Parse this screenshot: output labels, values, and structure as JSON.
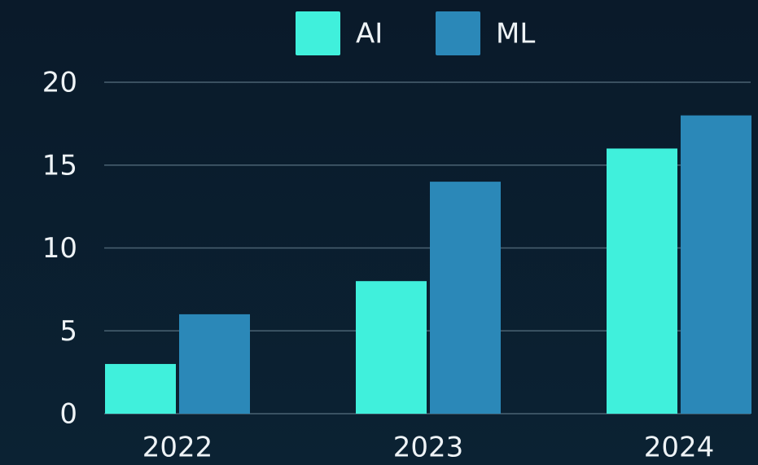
{
  "chart_data": {
    "type": "bar",
    "categories": [
      "2022",
      "2023",
      "2024"
    ],
    "series": [
      {
        "name": "AI",
        "color": "#40f0dc",
        "values": [
          3,
          8,
          16
        ]
      },
      {
        "name": "ML",
        "color": "#2b88b8",
        "values": [
          6,
          14,
          18
        ]
      }
    ],
    "ylim": [
      0,
      20
    ],
    "yticks": [
      0,
      5,
      10,
      15,
      20
    ],
    "grid": true,
    "legend": "top"
  }
}
